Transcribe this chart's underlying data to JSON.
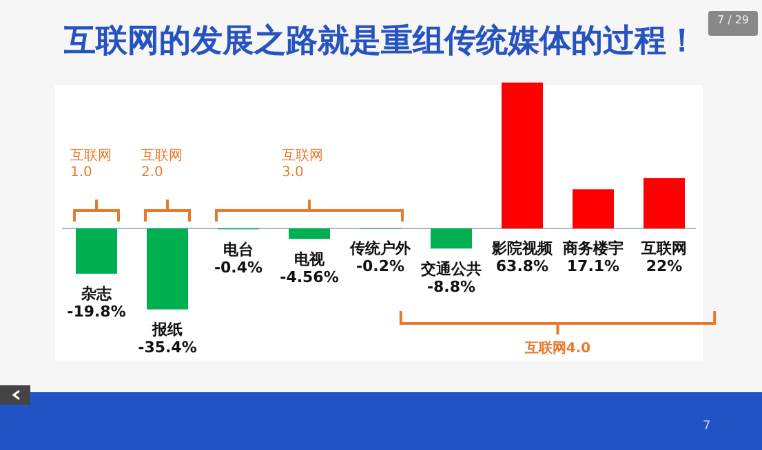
{
  "chart_data": {
    "type": "bar",
    "title": "互联网的发展之路就是重组传统媒体的过程！",
    "categories": [
      "杂志",
      "报纸",
      "电台",
      "电视",
      "传统户外",
      "交通公共",
      "影院视频",
      "商务楼宇",
      "互联网"
    ],
    "values": [
      -19.8,
      -35.4,
      -0.4,
      -4.56,
      -0.2,
      -8.8,
      63.8,
      17.1,
      22
    ],
    "value_labels": [
      "-19.8%",
      "-35.4%",
      "-0.4%",
      "-4.56%",
      "-0.2%",
      "-8.8%",
      "63.8%",
      "17.1%",
      "22%"
    ],
    "colors": [
      "#00b050",
      "#00b050",
      "#00b050",
      "#00b050",
      "#00b050",
      "#00b050",
      "#ff0000",
      "#ff0000",
      "#ff0000"
    ],
    "annotations": [
      "互联网1.0",
      "互联网2.0",
      "互联网3.0",
      "互联网4.0",
      "7 / 29",
      "7"
    ]
  }
}
